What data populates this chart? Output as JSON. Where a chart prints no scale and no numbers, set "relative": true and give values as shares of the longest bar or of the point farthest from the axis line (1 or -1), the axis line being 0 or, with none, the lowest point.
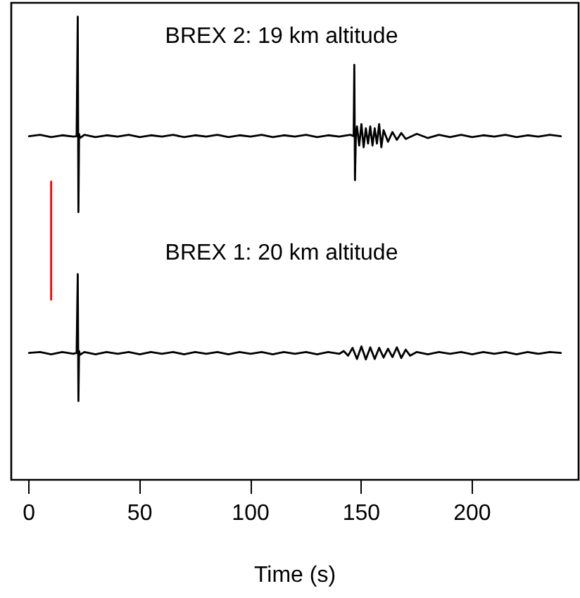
{
  "chart_data": {
    "type": "line",
    "relative": true,
    "xlabel": "Time (s)",
    "xlim": [
      -8,
      248
    ],
    "xticks": [
      0,
      50,
      100,
      150,
      200
    ],
    "marker": "none",
    "line_style": "solid",
    "annotations": [
      "BREX 2: 19 km altitude",
      "BREX 1: 20 km altitude"
    ],
    "series": [
      {
        "color": "#000000",
        "x": [
          0,
          5,
          10,
          15,
          20,
          21.5,
          22,
          22.3,
          22.6,
          23,
          25,
          30,
          35,
          40,
          45,
          50,
          55,
          60,
          65,
          70,
          75,
          80,
          85,
          90,
          95,
          100,
          105,
          110,
          115,
          120,
          125,
          130,
          135,
          140,
          145,
          146.5,
          146.8,
          147.1,
          147.5,
          148,
          149,
          150,
          151,
          152,
          153,
          154,
          155,
          156,
          157,
          158,
          159,
          160,
          162,
          164,
          166,
          168,
          170,
          175,
          180,
          185,
          190,
          195,
          200,
          205,
          210,
          215,
          220,
          225,
          230,
          235,
          240
        ],
        "values": [
          0.742,
          0.745,
          0.74,
          0.744,
          0.741,
          0.742,
          1.0,
          0.578,
          0.747,
          0.738,
          0.745,
          0.74,
          0.744,
          0.741,
          0.745,
          0.74,
          0.744,
          0.741,
          0.745,
          0.74,
          0.744,
          0.741,
          0.745,
          0.74,
          0.744,
          0.741,
          0.745,
          0.74,
          0.744,
          0.741,
          0.745,
          0.74,
          0.744,
          0.741,
          0.745,
          0.742,
          0.896,
          0.647,
          0.743,
          0.763,
          0.722,
          0.768,
          0.718,
          0.759,
          0.726,
          0.763,
          0.722,
          0.759,
          0.726,
          0.768,
          0.718,
          0.755,
          0.73,
          0.751,
          0.734,
          0.749,
          0.736,
          0.747,
          0.738,
          0.745,
          0.74,
          0.745,
          0.74,
          0.744,
          0.741,
          0.745,
          0.74,
          0.744,
          0.741,
          0.745,
          0.742
        ]
      },
      {
        "color": "#000000",
        "x": [
          0,
          5,
          10,
          15,
          20,
          21.5,
          22,
          22.3,
          22.6,
          23,
          25,
          30,
          35,
          40,
          45,
          50,
          55,
          60,
          65,
          70,
          75,
          80,
          85,
          90,
          95,
          100,
          105,
          110,
          115,
          120,
          125,
          130,
          135,
          140,
          142,
          144,
          146,
          148,
          150,
          152,
          154,
          156,
          158,
          160,
          162,
          164,
          166,
          168,
          170,
          172,
          175,
          180,
          185,
          190,
          195,
          200,
          205,
          210,
          215,
          220,
          225,
          230,
          235,
          240
        ],
        "values": [
          0.274,
          0.276,
          0.271,
          0.276,
          0.272,
          0.274,
          0.444,
          0.17,
          0.278,
          0.27,
          0.276,
          0.271,
          0.276,
          0.272,
          0.276,
          0.271,
          0.276,
          0.272,
          0.276,
          0.271,
          0.276,
          0.272,
          0.276,
          0.271,
          0.276,
          0.272,
          0.276,
          0.271,
          0.276,
          0.272,
          0.276,
          0.271,
          0.276,
          0.272,
          0.278,
          0.268,
          0.285,
          0.261,
          0.288,
          0.26,
          0.286,
          0.261,
          0.285,
          0.264,
          0.283,
          0.265,
          0.286,
          0.263,
          0.281,
          0.268,
          0.276,
          0.271,
          0.276,
          0.272,
          0.276,
          0.271,
          0.276,
          0.272,
          0.276,
          0.271,
          0.276,
          0.272,
          0.276,
          0.274
        ]
      },
      {
        "color": "#ff0000",
        "x": [
          10,
          10
        ],
        "values": [
          0.389,
          0.644
        ]
      }
    ]
  }
}
